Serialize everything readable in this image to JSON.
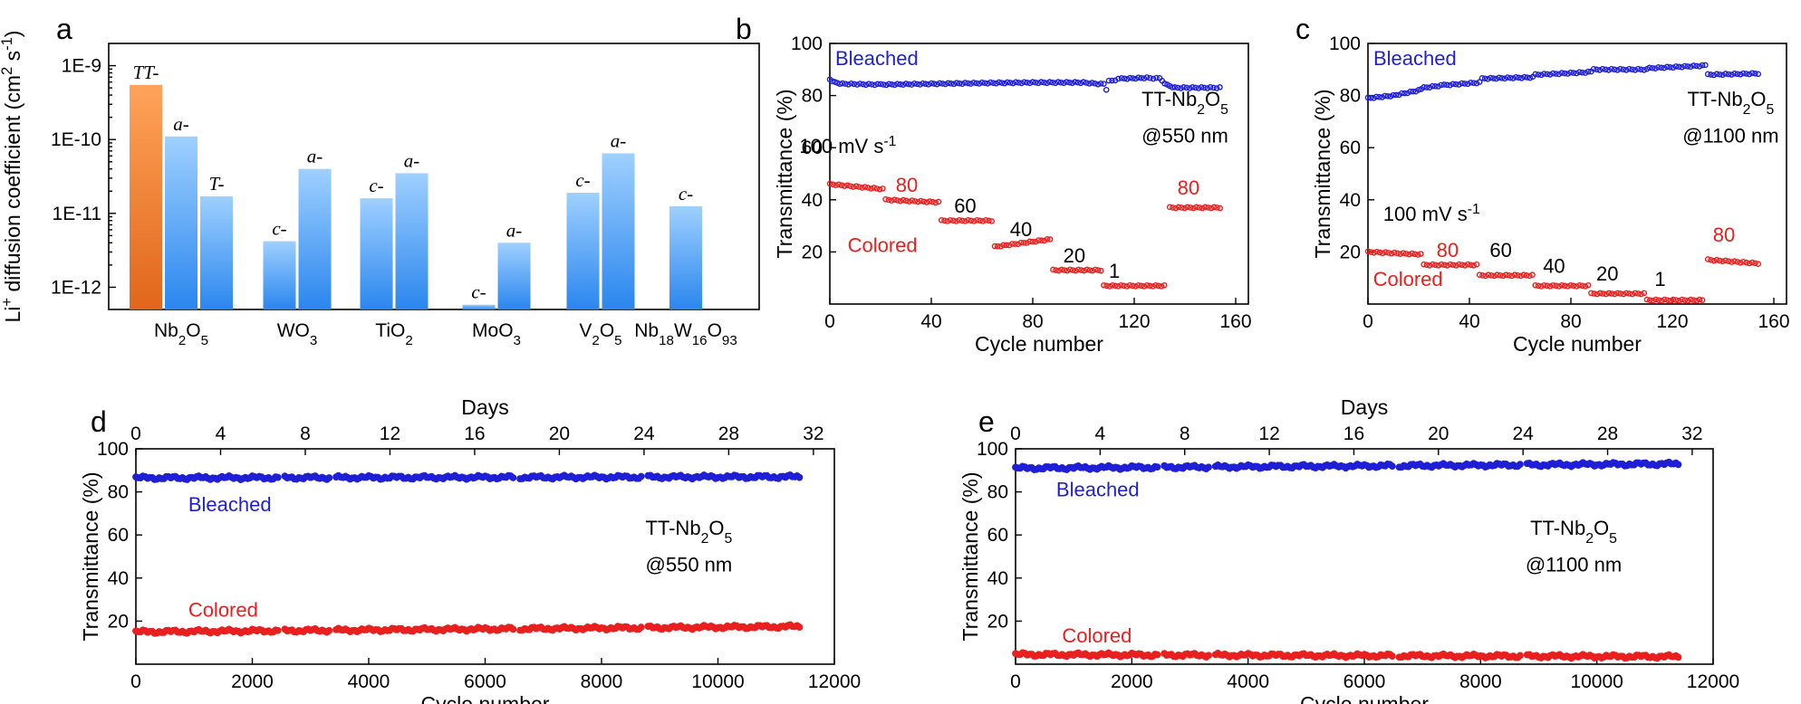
{
  "panels": {
    "a": "a",
    "b": "b",
    "c": "c",
    "d": "d",
    "e": "e"
  },
  "colors": {
    "blue": "#1f1fd6",
    "red": "#e8201f",
    "bar_blue": "#3b95f0",
    "bar_orange": "#ea7a2a"
  },
  "chart_data": [
    {
      "id": "a",
      "type": "bar",
      "ylabel": "Li⁺ diffusion coefficient (cm² s⁻¹)",
      "yscale": "log",
      "ylim": [
        5e-13,
        2e-09
      ],
      "yticks": [
        "1E-12",
        "1E-11",
        "1E-10",
        "1E-9"
      ],
      "groups": [
        {
          "name": "Nb2O5",
          "label_base": "Nb",
          "label_parts": [
            [
              "Nb",
              ""
            ],
            [
              "2",
              "sub"
            ],
            [
              "O",
              ""
            ],
            [
              "5",
              "sub"
            ]
          ],
          "bars": [
            {
              "phase": "TT-",
              "value": 5.5e-10,
              "highlight": true
            },
            {
              "phase": "a-",
              "value": 1.1e-10
            },
            {
              "phase": "T-",
              "value": 1.7e-11
            }
          ]
        },
        {
          "name": "WO3",
          "label_parts": [
            [
              "WO",
              ""
            ],
            [
              "3",
              "sub"
            ]
          ],
          "bars": [
            {
              "phase": "c-",
              "value": 4.2e-12
            },
            {
              "phase": "a-",
              "value": 4e-11
            }
          ]
        },
        {
          "name": "TiO2",
          "label_parts": [
            [
              "TiO",
              ""
            ],
            [
              "2",
              "sub"
            ]
          ],
          "bars": [
            {
              "phase": "c-",
              "value": 1.6e-11
            },
            {
              "phase": "a-",
              "value": 3.5e-11
            }
          ]
        },
        {
          "name": "MoO3",
          "label_parts": [
            [
              "MoO",
              ""
            ],
            [
              "3",
              "sub"
            ]
          ],
          "bars": [
            {
              "phase": "c-",
              "value": 5.8e-13
            },
            {
              "phase": "a-",
              "value": 4e-12
            }
          ]
        },
        {
          "name": "V2O5",
          "label_parts": [
            [
              "V",
              ""
            ],
            [
              "2",
              "sub"
            ],
            [
              "O",
              ""
            ],
            [
              "5",
              "sub"
            ]
          ],
          "bars": [
            {
              "phase": "c-",
              "value": 1.9e-11
            },
            {
              "phase": "a-",
              "value": 6.5e-11
            }
          ]
        },
        {
          "name": "Nb18W16O93",
          "label_parts": [
            [
              "Nb",
              ""
            ],
            [
              "18",
              "sub"
            ],
            [
              "W",
              ""
            ],
            [
              "16",
              "sub"
            ],
            [
              "O",
              ""
            ],
            [
              "93",
              "sub"
            ]
          ],
          "bars": [
            {
              "phase": "c-",
              "value": 1.25e-11
            }
          ]
        }
      ]
    },
    {
      "id": "b",
      "type": "scatter",
      "xlabel": "Cycle number",
      "ylabel": "Transmittance (%)",
      "xlim": [
        0,
        165
      ],
      "ylim": [
        0,
        100
      ],
      "xticks": [
        0,
        40,
        80,
        120,
        160
      ],
      "yticks": [
        20,
        40,
        60,
        80,
        100
      ],
      "bleached": [
        [
          0,
          86
        ],
        [
          2,
          85
        ],
        [
          5,
          84.5
        ],
        [
          20,
          84.2
        ],
        [
          40,
          84.5
        ],
        [
          60,
          84.8
        ],
        [
          80,
          85
        ],
        [
          100,
          85
        ],
        [
          108,
          84.3
        ],
        [
          109,
          82
        ],
        [
          110,
          85.5
        ],
        [
          115,
          86.5
        ],
        [
          125,
          86.8
        ],
        [
          130,
          86.5
        ],
        [
          133,
          84
        ],
        [
          136,
          83
        ],
        [
          150,
          83
        ],
        [
          155,
          83
        ]
      ],
      "colored_segments": [
        {
          "x": [
            0,
            22
          ],
          "y": [
            46,
            44
          ]
        },
        {
          "x": [
            22,
            44
          ],
          "y": [
            40,
            39
          ]
        },
        {
          "x": [
            44,
            65
          ],
          "y": [
            32,
            32
          ]
        },
        {
          "x": [
            65,
            88
          ],
          "y": [
            22,
            25
          ]
        },
        {
          "x": [
            88,
            108
          ],
          "y": [
            13,
            13
          ]
        },
        {
          "x": [
            108,
            133
          ],
          "y": [
            7,
            7
          ]
        },
        {
          "x": [
            134,
            155
          ],
          "y": [
            37,
            37
          ]
        }
      ],
      "rate_labels": [
        "100 mV s⁻¹",
        "80",
        "60",
        "40",
        "20",
        "1",
        "80"
      ],
      "legend_bleached": "Bleached",
      "legend_colored": "Colored",
      "sample": "TT-Nb2O5",
      "wavelength": "@550 nm"
    },
    {
      "id": "c",
      "type": "scatter",
      "xlabel": "Cycle number",
      "ylabel": "Transmittance (%)",
      "xlim": [
        0,
        165
      ],
      "ylim": [
        0,
        100
      ],
      "xticks": [
        0,
        40,
        80,
        120,
        160
      ],
      "yticks": [
        20,
        40,
        60,
        80,
        100
      ],
      "bleached": [
        [
          0,
          79
        ],
        [
          10,
          80
        ],
        [
          20,
          82
        ],
        [
          22,
          83
        ],
        [
          30,
          84
        ],
        [
          44,
          85
        ],
        [
          45,
          86.5
        ],
        [
          65,
          87
        ],
        [
          66,
          88
        ],
        [
          88,
          89
        ],
        [
          89,
          90
        ],
        [
          110,
          90
        ],
        [
          111,
          90.5
        ],
        [
          133,
          91.5
        ],
        [
          134,
          88
        ],
        [
          155,
          88.5
        ]
      ],
      "colored_segments": [
        {
          "x": [
            0,
            22
          ],
          "y": [
            20,
            19
          ]
        },
        {
          "x": [
            22,
            44
          ],
          "y": [
            15,
            15
          ]
        },
        {
          "x": [
            44,
            66
          ],
          "y": [
            11,
            11
          ]
        },
        {
          "x": [
            66,
            88
          ],
          "y": [
            7,
            7
          ]
        },
        {
          "x": [
            88,
            110
          ],
          "y": [
            4,
            4
          ]
        },
        {
          "x": [
            110,
            133
          ],
          "y": [
            1.5,
            1.5
          ]
        },
        {
          "x": [
            134,
            155
          ],
          "y": [
            17,
            15.5
          ]
        }
      ],
      "rate_labels": [
        "100 mV s⁻¹",
        "80",
        "60",
        "40",
        "20",
        "1",
        "80"
      ],
      "legend_bleached": "Bleached",
      "legend_colored": "Colored",
      "sample": "TT-Nb2O5",
      "wavelength": "@1100 nm"
    },
    {
      "id": "d",
      "type": "scatter",
      "xlabel": "Cycle number",
      "ylabel": "Transmittance (%)",
      "top_xlabel": "Days",
      "xlim": [
        0,
        12000
      ],
      "ylim": [
        0,
        100
      ],
      "xticks": [
        0,
        2000,
        4000,
        6000,
        8000,
        10000,
        12000
      ],
      "top_xticks": [
        0,
        4,
        8,
        12,
        16,
        20,
        24,
        28,
        32
      ],
      "yticks": [
        20,
        40,
        60,
        80,
        100
      ],
      "bleached": {
        "x": [
          0,
          11400
        ],
        "y": [
          86.5,
          87
        ],
        "gaps": [
          2450,
          3350,
          6480,
          8700
        ]
      },
      "colored": {
        "x": [
          0,
          11400
        ],
        "y": [
          15,
          17.5
        ],
        "gaps": [
          2450,
          3350,
          6480,
          8700
        ]
      },
      "legend_bleached": "Bleached",
      "legend_colored": "Colored",
      "sample": "TT-Nb2O5",
      "wavelength": "@550 nm"
    },
    {
      "id": "e",
      "type": "scatter",
      "xlabel": "Cycle number",
      "ylabel": "Transmittance (%)",
      "top_xlabel": "Days",
      "xlim": [
        0,
        12000
      ],
      "ylim": [
        0,
        100
      ],
      "xticks": [
        0,
        2000,
        4000,
        6000,
        8000,
        10000,
        12000
      ],
      "top_xticks": [
        0,
        4,
        8,
        12,
        16,
        20,
        24,
        28,
        32
      ],
      "yticks": [
        20,
        40,
        60,
        80,
        100
      ],
      "bleached": {
        "x": [
          0,
          11400
        ],
        "y": [
          91,
          93
        ],
        "gaps": [
          2450,
          3350,
          6480,
          8700
        ]
      },
      "colored": {
        "x": [
          0,
          11400
        ],
        "y": [
          4.5,
          3.5
        ],
        "gaps": [
          2450,
          3350,
          6480,
          8700
        ]
      },
      "legend_bleached": "Bleached",
      "legend_colored": "Colored",
      "sample": "TT-Nb2O5",
      "wavelength": "@1100 nm"
    }
  ]
}
